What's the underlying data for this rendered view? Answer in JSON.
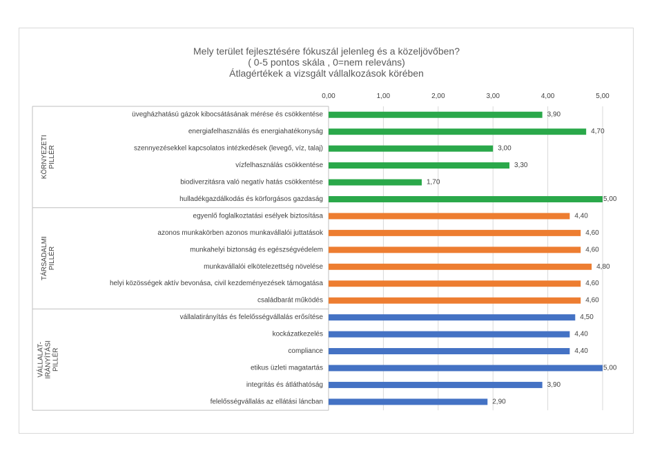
{
  "chart_data": {
    "type": "bar",
    "orientation": "horizontal",
    "title": "Mely terület fejlesztésére fókuszál jelenleg és a közeljövőben?",
    "subtitle": "( 0-5 pontos skála , 0=nem releváns)",
    "subtitle2": "Átlagértékek a vizsgált vállalkozások körében",
    "xlim": [
      0,
      5
    ],
    "ticks": [
      "0,00",
      "1,00",
      "2,00",
      "3,00",
      "4,00",
      "5,00"
    ],
    "gridlines": true,
    "axis_position": "top",
    "colors": {
      "green": "#2aa84a",
      "orange": "#ed7d31",
      "blue": "#4472c4"
    },
    "groups": [
      {
        "label_lines": [
          "KÖRNYEZETI",
          "PILLÉR"
        ],
        "color": "#2aa84a",
        "categories": [
          "üvegházhatású gázok kibocsátásának mérése és csökkentése",
          "energiafelhasználás és energiahatékonyság",
          "szennyezésekkel kapcsolatos intézkedések (levegő, víz, talaj)",
          "vízfelhasználás csökkentése",
          "biodiverzitásra való negatív hatás csökkentése",
          "hulladékgazdálkodás és körforgásos gazdaság"
        ],
        "values": [
          3.9,
          4.7,
          3.0,
          3.3,
          1.7,
          5.0
        ],
        "labels": [
          "3,90",
          "4,70",
          "3,00",
          "3,30",
          "1,70",
          "5,00"
        ]
      },
      {
        "label_lines": [
          "TÁRSADALMI",
          "PILLÉR"
        ],
        "color": "#ed7d31",
        "categories": [
          "egyenlő foglalkoztatási esélyek biztosítása",
          "azonos munkakörben azonos munkavállalói juttatások",
          "munkahelyi biztonság és egészségvédelem",
          "munkavállalói elkötelezettség növelése",
          "helyi közösségek aktív bevonása, civil kezdeményezések támogatása",
          "családbarát működés"
        ],
        "values": [
          4.4,
          4.6,
          4.6,
          4.8,
          4.6,
          4.6
        ],
        "labels": [
          "4,40",
          "4,60",
          "4,60",
          "4,80",
          "4,60",
          "4,60"
        ]
      },
      {
        "label_lines": [
          "VÁLLALAT-",
          "IRÁNYÍTÁSI",
          "PILLÉR"
        ],
        "color": "#4472c4",
        "categories": [
          "vállalatirányítás és felelősségvállalás erősítése",
          "kockázatkezelés",
          "compliance",
          "etikus üzleti magatartás",
          "integritás és átláthatóság",
          "felelősségvállalás az ellátási láncban"
        ],
        "values": [
          4.5,
          4.4,
          4.4,
          5.0,
          3.9,
          2.9
        ],
        "labels": [
          "4,50",
          "4,40",
          "4,40",
          "5,00",
          "3,90",
          "2,90"
        ]
      }
    ]
  }
}
